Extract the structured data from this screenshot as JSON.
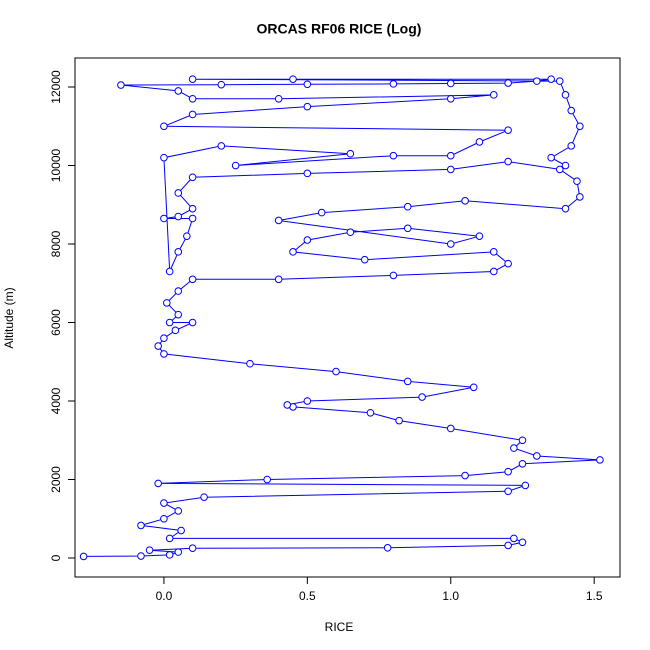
{
  "chart_data": {
    "type": "line",
    "markers": true,
    "title": "ORCAS RF06 RICE (Log)",
    "xlabel": "RICE",
    "ylabel": "Altitude (m)",
    "color": "#0000ff",
    "xlim": [
      -0.31,
      1.59
    ],
    "xticks": [
      {
        "value": 0,
        "label": "0.0"
      },
      0.5,
      {
        "value": 1,
        "label": "1.0"
      },
      1.5
    ],
    "ylim": [
      -484,
      12739
    ],
    "yticks": [
      0,
      2000,
      4000,
      6000,
      8000,
      10000,
      12000
    ],
    "grid": false,
    "x": [
      -0.28,
      -0.08,
      0.02,
      0.05,
      -0.05,
      0.1,
      0.78,
      1.2,
      1.25,
      1.22,
      0.02,
      0.06,
      -0.08,
      0.0,
      0.05,
      0.0,
      0.14,
      1.2,
      1.26,
      -0.02,
      0.36,
      1.05,
      1.2,
      1.25,
      1.52,
      1.3,
      1.22,
      1.25,
      1.0,
      0.82,
      0.72,
      0.45,
      0.43,
      0.5,
      0.9,
      1.08,
      0.85,
      0.6,
      0.3,
      0.0,
      -0.02,
      0.0,
      0.04,
      0.1,
      0.02,
      0.05,
      0.01,
      0.05,
      0.1,
      0.4,
      0.8,
      1.15,
      1.2,
      1.15,
      0.7,
      0.45,
      0.5,
      0.65,
      0.85,
      1.1,
      1.0,
      0.4,
      0.55,
      0.85,
      1.05,
      1.4,
      1.45,
      1.44,
      1.38,
      1.2,
      1.0,
      0.5,
      0.1,
      0.05,
      0.1,
      0.05,
      0.0,
      0.1,
      0.08,
      0.05,
      0.02,
      0.0,
      0.2,
      0.65,
      0.25,
      0.8,
      1.0,
      1.1,
      1.2,
      0.0,
      0.1,
      0.5,
      1.0,
      1.15,
      0.4,
      0.1,
      0.05,
      -0.15,
      0.2,
      0.5,
      0.8,
      1.0,
      1.2,
      1.3,
      1.35,
      0.45,
      0.1,
      1.38,
      1.4,
      1.42,
      1.45,
      1.42,
      1.35,
      1.4
    ],
    "values": [
      40,
      50,
      80,
      150,
      200,
      250,
      260,
      320,
      400,
      500,
      500,
      700,
      830,
      1000,
      1200,
      1400,
      1550,
      1700,
      1850,
      1900,
      2000,
      2100,
      2200,
      2400,
      2500,
      2600,
      2800,
      3000,
      3300,
      3500,
      3700,
      3850,
      3900,
      4000,
      4100,
      4350,
      4500,
      4750,
      4950,
      5200,
      5400,
      5600,
      5800,
      6000,
      6000,
      6200,
      6500,
      6800,
      7100,
      7100,
      7200,
      7300,
      7500,
      7800,
      7600,
      7800,
      8100,
      8300,
      8400,
      8200,
      8000,
      8600,
      8800,
      8950,
      9100,
      8900,
      9200,
      9600,
      9900,
      10100,
      9900,
      9800,
      9700,
      9300,
      8900,
      8700,
      8650,
      8650,
      8200,
      7800,
      7300,
      10200,
      10500,
      10300,
      10000,
      10250,
      10250,
      10600,
      10900,
      11000,
      11300,
      11500,
      11700,
      11800,
      11700,
      11700,
      11900,
      12050,
      12060,
      12070,
      12080,
      12090,
      12100,
      12150,
      12200,
      12200,
      12200,
      12150,
      11800,
      11400,
      11000,
      10500,
      10200,
      10000
    ]
  }
}
